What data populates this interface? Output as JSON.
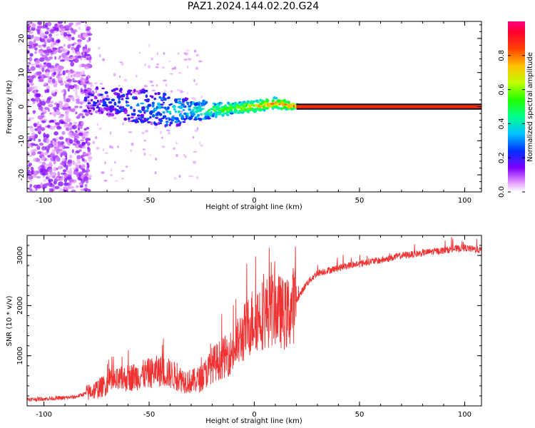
{
  "title": "PAZ1.2024.144.02.20.G24",
  "chart_data": [
    {
      "type": "heatmap",
      "xlabel": "Height of straight line (km)",
      "ylabel": "Frequency (Hz)",
      "xlim": [
        -108,
        108
      ],
      "ylim": [
        -25,
        25
      ],
      "x_ticks": [
        -100,
        -50,
        0,
        50,
        100
      ],
      "y_ticks": [
        -20,
        -10,
        0,
        10,
        20
      ],
      "colorbar": {
        "label": "Normalized spectral amplitude",
        "range": [
          0,
          1
        ],
        "ticks": [
          0.0,
          0.2,
          0.4,
          0.6,
          0.8
        ],
        "colormap": "gist_rainbow"
      },
      "frequency_track": [
        {
          "height_km": -80,
          "freq_hz": 1.5,
          "spread_hz": 5.0,
          "amplitude": 0.15
        },
        {
          "height_km": -70,
          "freq_hz": 1.5,
          "spread_hz": 5.0,
          "amplitude": 0.2
        },
        {
          "height_km": -60,
          "freq_hz": 0.5,
          "spread_hz": 6.0,
          "amplitude": 0.25
        },
        {
          "height_km": -50,
          "freq_hz": 0.0,
          "spread_hz": 6.0,
          "amplitude": 0.3
        },
        {
          "height_km": -40,
          "freq_hz": -1.5,
          "spread_hz": 6.0,
          "amplitude": 0.35
        },
        {
          "height_km": -30,
          "freq_hz": -1.0,
          "spread_hz": 4.0,
          "amplitude": 0.4
        },
        {
          "height_km": -20,
          "freq_hz": -1.0,
          "spread_hz": 3.0,
          "amplitude": 0.5
        },
        {
          "height_km": -10,
          "freq_hz": -0.5,
          "spread_hz": 2.0,
          "amplitude": 0.6
        },
        {
          "height_km": 0,
          "freq_hz": 0.0,
          "spread_hz": 2.0,
          "amplitude": 0.7
        },
        {
          "height_km": 10,
          "freq_hz": 1.0,
          "spread_hz": 2.0,
          "amplitude": 0.75
        },
        {
          "height_km": 20,
          "freq_hz": 0.0,
          "spread_hz": 1.0,
          "amplitude": 0.85
        },
        {
          "height_km": 40,
          "freq_hz": 0.0,
          "spread_hz": 0.8,
          "amplitude": 0.9
        },
        {
          "height_km": 60,
          "freq_hz": 0.0,
          "spread_hz": 0.8,
          "amplitude": 0.9
        },
        {
          "height_km": 80,
          "freq_hz": 0.0,
          "spread_hz": 0.8,
          "amplitude": 0.9
        },
        {
          "height_km": 100,
          "freq_hz": 0.0,
          "spread_hz": 0.8,
          "amplitude": 0.9
        },
        {
          "height_km": 108,
          "freq_hz": 0.0,
          "spread_hz": 0.8,
          "amplitude": 0.9
        }
      ]
    },
    {
      "type": "line",
      "xlabel": "Height of straight line (km)",
      "ylabel": "SNR (10 * v/v)",
      "xlim": [
        -108,
        108
      ],
      "ylim": [
        0,
        3400
      ],
      "x_ticks": [
        -100,
        -50,
        0,
        50,
        100
      ],
      "y_ticks": [
        1000,
        2000,
        3000
      ],
      "line_color": "#f03232",
      "series": [
        {
          "x": [
            -108,
            -100,
            -90,
            -85,
            -80,
            -75,
            -70,
            -65,
            -60,
            -55,
            -50,
            -45,
            -40,
            -35,
            -30,
            -25,
            -20,
            -15,
            -10,
            -5,
            0,
            5,
            10,
            15,
            20,
            25,
            30,
            35,
            40,
            45,
            50,
            55,
            60,
            65,
            70,
            75,
            80,
            85,
            90,
            95,
            100,
            105,
            108
          ],
          "y": [
            130,
            140,
            160,
            180,
            250,
            330,
            430,
            500,
            560,
            600,
            650,
            700,
            640,
            540,
            480,
            550,
            820,
            950,
            1100,
            1450,
            1750,
            1850,
            1950,
            1800,
            2100,
            2450,
            2650,
            2700,
            2750,
            2800,
            2830,
            2880,
            2900,
            2950,
            3000,
            3020,
            3050,
            3080,
            3100,
            3130,
            3150,
            3120,
            3100
          ]
        }
      ]
    }
  ]
}
